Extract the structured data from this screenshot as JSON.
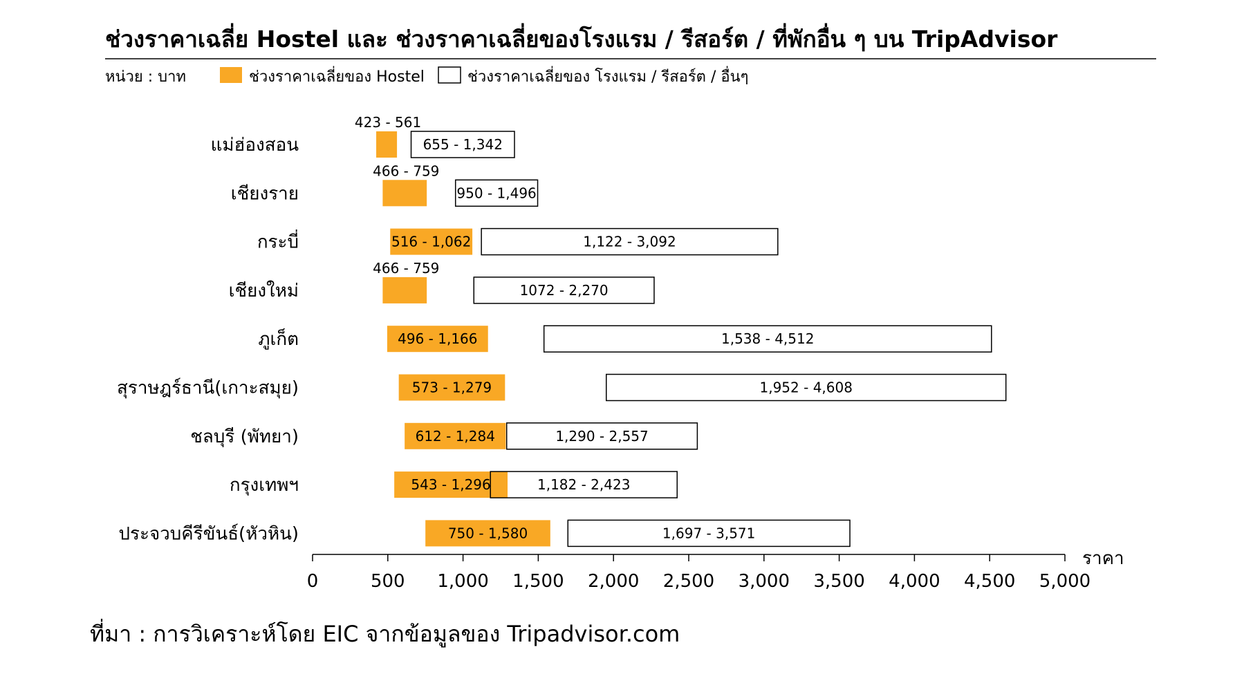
{
  "chart_data": {
    "type": "bar",
    "orientation": "horizontal",
    "title": "ช่วงราคาเฉลี่ย Hostel และ ช่วงราคาเฉลี่ยของโรงแรม / รีสอร์ต / ที่พักอื่น ๆ บน TripAdvisor",
    "unit_label": "หน่วย :  บาท",
    "xlabel": "ราคา",
    "xlim": [
      0,
      5000
    ],
    "xticks": [
      0,
      500,
      1000,
      1500,
      2000,
      2500,
      3000,
      3500,
      4000,
      4500,
      5000
    ],
    "xtick_labels": [
      "0",
      "500",
      "1,000",
      "1,500",
      "2,000",
      "2,500",
      "3,000",
      "3,500",
      "4,000",
      "4,500",
      "5,000"
    ],
    "legend": [
      {
        "name": "ช่วงราคาเฉลี่ยของ  Hostel",
        "color": "#F9A825",
        "style": "filled"
      },
      {
        "name": "ช่วงราคาเฉลี่ยของ โรงแรม  / รีสอร์ต  / อื่นๆ",
        "color": "#FFFFFF",
        "style": "outlined"
      }
    ],
    "categories": [
      "แม่ฮ่องสอน",
      "เชียงราย",
      "กระบี่",
      "เชียงใหม่",
      "ภูเก็ต",
      "สุราษฎร์ธานี(เกาะสมุย)",
      "ชลบุรี (พัทยา)",
      "กรุงเทพฯ",
      "ประจวบคีรีขันธ์(หัวหิน)"
    ],
    "series": [
      {
        "name": "ช่วงราคาเฉลี่ยของ  Hostel",
        "color": "#F9A825",
        "ranges": [
          [
            423,
            561
          ],
          [
            466,
            759
          ],
          [
            516,
            1062
          ],
          [
            466,
            759
          ],
          [
            496,
            1166
          ],
          [
            573,
            1279
          ],
          [
            612,
            1284
          ],
          [
            543,
            1296
          ],
          [
            750,
            1580
          ]
        ],
        "labels": [
          "423 - 561",
          "466 - 759",
          "516 - 1,062",
          "466 - 759",
          "496 - 1,166",
          "573 -  1,279",
          "612 - 1,284",
          "543 - 1,296",
          "750 - 1,580"
        ]
      },
      {
        "name": "ช่วงราคาเฉลี่ยของ โรงแรม  / รีสอร์ต  / อื่นๆ",
        "color": "#FFFFFF",
        "ranges": [
          [
            655,
            1342
          ],
          [
            950,
            1496
          ],
          [
            1122,
            3092
          ],
          [
            1072,
            2270
          ],
          [
            1538,
            4512
          ],
          [
            1952,
            4608
          ],
          [
            1290,
            2557
          ],
          [
            1182,
            2423
          ],
          [
            1697,
            3571
          ]
        ],
        "labels": [
          "655 - 1,342",
          "950 - 1,496",
          "1,122 - 3,092",
          "1072 - 2,270",
          "1,538 - 4,512",
          "1,952 - 4,608",
          "1,290 - 2,557",
          "1,182 - 2,423",
          "1,697 - 3,571"
        ]
      }
    ],
    "colors": {
      "hostel": "#F9A825",
      "hotel_fill": "#FFFFFF",
      "outline": "#000000"
    }
  },
  "source_note": "ที่มา : การวิเคราะห์โดย EIC จากข้อมูลของ Tripadvisor.com"
}
